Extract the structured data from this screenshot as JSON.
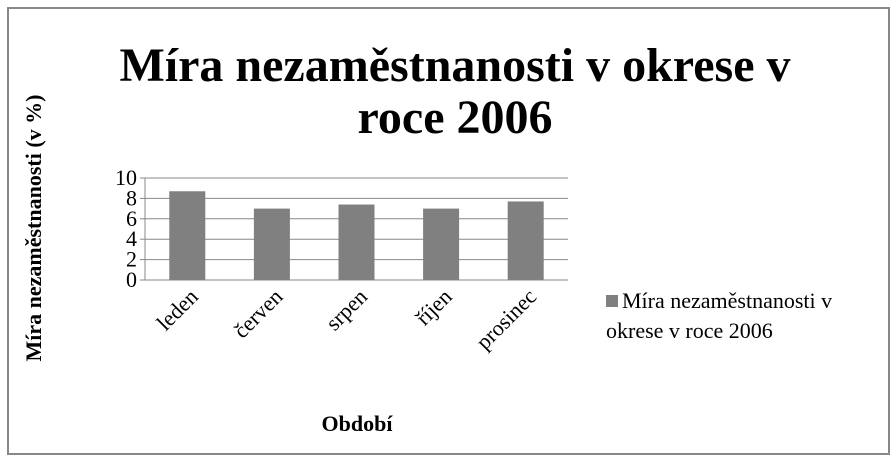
{
  "chart_data": {
    "type": "bar",
    "title": "Míra nezaměstnanosti v okrese v roce 2006",
    "xlabel": "Období",
    "ylabel": "Míra nezaměstnanosti (v %)",
    "categories": [
      "leden",
      "červen",
      "srpen",
      "říjen",
      "prosinec"
    ],
    "series": [
      {
        "name": "Míra nezaměstnanosti v okrese v roce 2006",
        "color": "#808080",
        "values": [
          8.7,
          7.0,
          7.4,
          7.0,
          7.7
        ]
      }
    ],
    "ylim": [
      0,
      10
    ],
    "yticks": [
      0,
      2,
      4,
      6,
      8,
      10
    ],
    "grid": true,
    "legend": "right"
  }
}
